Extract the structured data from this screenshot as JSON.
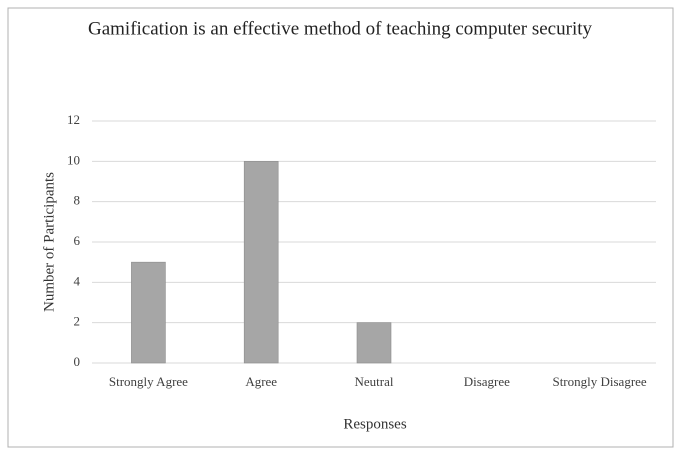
{
  "chart_data": {
    "type": "bar",
    "title": "Gamification is an effective method of teaching computer security",
    "x_label": "Responses",
    "y_label": "Number of Participants",
    "categories": [
      "Strongly Agree",
      "Agree",
      "Neutral",
      "Disagree",
      "Strongly Disagree"
    ],
    "values": [
      5,
      10,
      2,
      0,
      0
    ],
    "color": "#a6a6a6",
    "ylim": [
      0,
      12
    ],
    "yticks": [
      0,
      2,
      4,
      6,
      8,
      10,
      12
    ],
    "grid": true
  }
}
